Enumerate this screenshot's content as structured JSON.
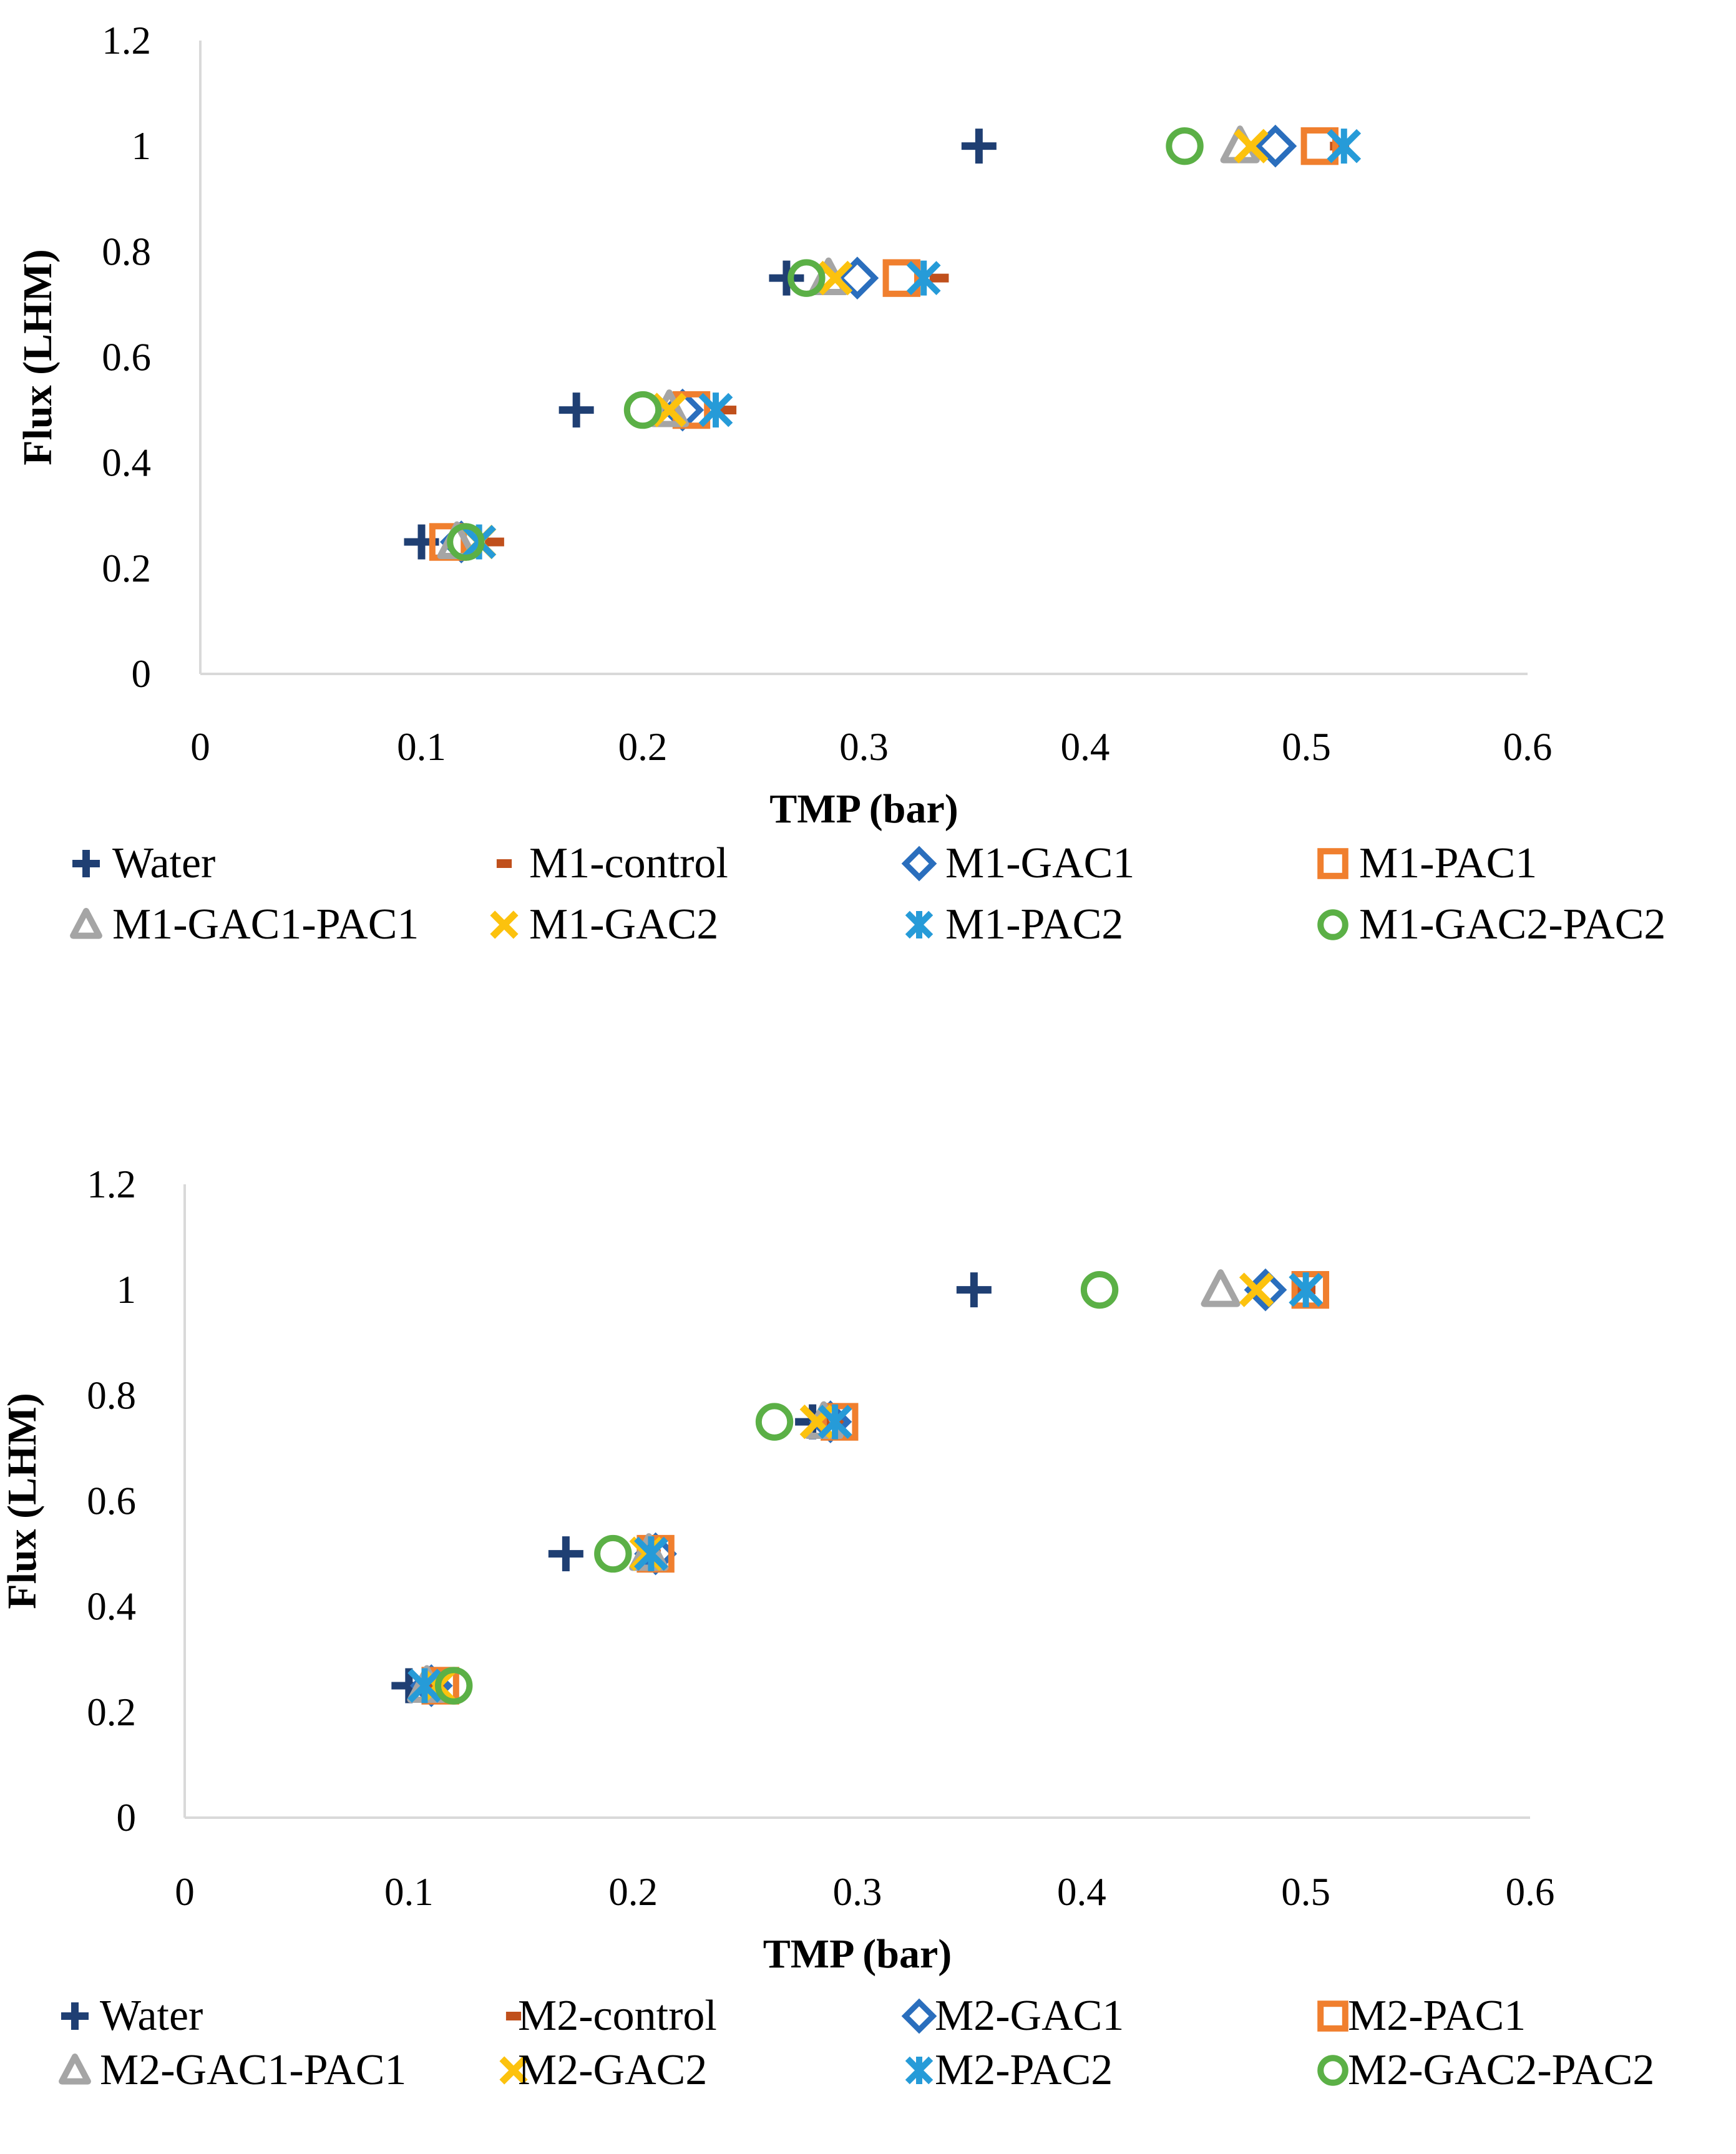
{
  "charts": [
    {
      "type": "scatter",
      "xlabel": "TMP (bar)",
      "ylabel": "Flux (LHM)",
      "xlim": [
        0,
        0.6
      ],
      "ylim": [
        0,
        1.2
      ],
      "xticks": [
        "0",
        "0.1",
        "0.2",
        "0.3",
        "0.4",
        "0.5",
        "0.6"
      ],
      "yticks": [
        "0",
        "0.2",
        "0.4",
        "0.6",
        "0.8",
        "1",
        "1.2"
      ],
      "grid": false,
      "legend_position": "bottom",
      "series": [
        {
          "name": "Water",
          "marker": "plus",
          "color": "#1f3f73",
          "x": [
            0.1,
            0.17,
            0.265,
            0.352
          ],
          "y": [
            0.25,
            0.5,
            0.75,
            1
          ]
        },
        {
          "name": "M1-control",
          "marker": "dash",
          "color": "#c0501c",
          "x": [
            0.133,
            0.238,
            0.334,
            0.515
          ],
          "y": [
            0.25,
            0.5,
            0.75,
            1
          ]
        },
        {
          "name": "M1-GAC1",
          "marker": "diamond",
          "color": "#2a6ebd",
          "x": [
            0.118,
            0.218,
            0.297,
            0.486
          ],
          "y": [
            0.25,
            0.5,
            0.75,
            1
          ]
        },
        {
          "name": "M1-PAC1",
          "marker": "square",
          "color": "#f07f2e",
          "x": [
            0.112,
            0.222,
            0.317,
            0.506
          ],
          "y": [
            0.25,
            0.5,
            0.75,
            1
          ]
        },
        {
          "name": "M1-GAC1-PAC1",
          "marker": "triangle",
          "color": "#a5a5a5",
          "x": [
            0.116,
            0.212,
            0.284,
            0.47
          ],
          "y": [
            0.25,
            0.5,
            0.75,
            1
          ]
        },
        {
          "name": "M1-GAC2",
          "marker": "x",
          "color": "#fcc20e",
          "x": [
            0.126,
            0.212,
            0.287,
            0.475
          ],
          "y": [
            0.25,
            0.5,
            0.75,
            1
          ]
        },
        {
          "name": "M1-PAC2",
          "marker": "asterisk",
          "color": "#269bd8",
          "x": [
            0.126,
            0.233,
            0.327,
            0.517
          ],
          "y": [
            0.25,
            0.5,
            0.75,
            1
          ]
        },
        {
          "name": "M1-GAC2-PAC2",
          "marker": "circle",
          "color": "#5bb046",
          "x": [
            0.12,
            0.2,
            0.274,
            0.445
          ],
          "y": [
            0.25,
            0.5,
            0.75,
            1
          ]
        }
      ]
    },
    {
      "type": "scatter",
      "xlabel": "TMP (bar)",
      "ylabel": "Flux (LHM)",
      "xlim": [
        0,
        0.6
      ],
      "ylim": [
        0,
        1.2
      ],
      "xticks": [
        "0",
        "0.1",
        "0.2",
        "0.3",
        "0.4",
        "0.5",
        "0.6"
      ],
      "yticks": [
        "0",
        "0.2",
        "0.4",
        "0.6",
        "0.8",
        "1",
        "1.2"
      ],
      "grid": false,
      "legend_position": "bottom",
      "series": [
        {
          "name": "Water",
          "marker": "plus",
          "color": "#1f3f73",
          "x": [
            0.1,
            0.17,
            0.28,
            0.352
          ],
          "y": [
            0.25,
            0.5,
            0.75,
            1
          ]
        },
        {
          "name": "M2-control",
          "marker": "dash",
          "color": "#c0501c",
          "x": [
            0.112,
            0.208,
            0.29,
            0.5
          ],
          "y": [
            0.25,
            0.5,
            0.75,
            1
          ]
        },
        {
          "name": "M2-GAC1",
          "marker": "diamond",
          "color": "#2a6ebd",
          "x": [
            0.11,
            0.21,
            0.288,
            0.482
          ],
          "y": [
            0.25,
            0.5,
            0.75,
            1
          ]
        },
        {
          "name": "M2-PAC1",
          "marker": "square",
          "color": "#f07f2e",
          "x": [
            0.114,
            0.21,
            0.292,
            0.502
          ],
          "y": [
            0.25,
            0.5,
            0.75,
            1
          ]
        },
        {
          "name": "M2-GAC1-PAC1",
          "marker": "triangle",
          "color": "#a5a5a5",
          "x": [
            0.108,
            0.207,
            0.285,
            0.462
          ],
          "y": [
            0.25,
            0.5,
            0.75,
            1
          ]
        },
        {
          "name": "M2-GAC2",
          "marker": "x",
          "color": "#fcc20e",
          "x": [
            0.113,
            0.206,
            0.282,
            0.478
          ],
          "y": [
            0.25,
            0.5,
            0.75,
            1
          ]
        },
        {
          "name": "M2-PAC2",
          "marker": "asterisk",
          "color": "#269bd8",
          "x": [
            0.107,
            0.208,
            0.29,
            0.5
          ],
          "y": [
            0.25,
            0.5,
            0.75,
            1
          ]
        },
        {
          "name": "M2-GAC2-PAC2",
          "marker": "circle",
          "color": "#5bb046",
          "x": [
            0.12,
            0.191,
            0.263,
            0.408
          ],
          "y": [
            0.25,
            0.5,
            0.75,
            1
          ]
        }
      ]
    }
  ]
}
